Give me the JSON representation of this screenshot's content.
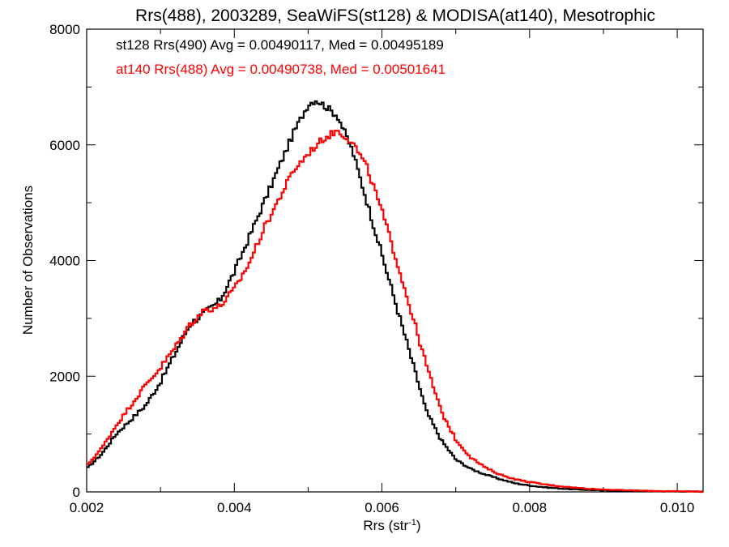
{
  "chart_data": {
    "type": "line",
    "title": "Rrs(488), 2003289, SeaWiFS(st128) & MODISA(at140), Mesotrophic",
    "xlabel": "Rrs (str",
    "xlabel_sup": "-1",
    "xlabel_close": ")",
    "ylabel": "Number of Observations",
    "xlim": [
      0.002,
      0.01035
    ],
    "ylim": [
      0,
      8000
    ],
    "x_ticks": [
      0.002,
      0.004,
      0.006,
      0.008,
      0.01
    ],
    "x_tick_labels": [
      "0.002",
      "0.004",
      "0.006",
      "0.008",
      "0.010"
    ],
    "y_ticks": [
      0,
      2000,
      4000,
      6000,
      8000
    ],
    "y_tick_labels": [
      "0",
      "2000",
      "4000",
      "6000",
      "8000"
    ],
    "grid": false,
    "legend_placement": "top-left",
    "series": [
      {
        "name": "st128 Rrs(490) Avg = 0.00490117, Med = 0.00495189",
        "color": "#000000",
        "x": [
          0.002,
          0.0022,
          0.0024,
          0.0026,
          0.0028,
          0.003,
          0.0032,
          0.0034,
          0.0036,
          0.0038,
          0.004,
          0.0042,
          0.0044,
          0.0046,
          0.0048,
          0.005,
          0.0051,
          0.0052,
          0.0053,
          0.0054,
          0.0056,
          0.0058,
          0.006,
          0.0062,
          0.0064,
          0.0066,
          0.0068,
          0.007,
          0.0072,
          0.0074,
          0.0076,
          0.0078,
          0.008,
          0.0082,
          0.0084,
          0.0086,
          0.0088,
          0.009,
          0.0092,
          0.0094,
          0.0096,
          0.0098,
          0.01,
          0.0102,
          0.01035
        ],
        "y": [
          400,
          650,
          1000,
          1250,
          1500,
          1900,
          2400,
          2900,
          3100,
          3300,
          3800,
          4400,
          5000,
          5600,
          6200,
          6700,
          6780,
          6700,
          6600,
          6500,
          5900,
          5000,
          4100,
          3200,
          2300,
          1400,
          900,
          560,
          400,
          300,
          220,
          150,
          110,
          80,
          60,
          45,
          35,
          25,
          20,
          15,
          12,
          10,
          8,
          6,
          5
        ]
      },
      {
        "name": "at140 Rrs(488) Avg = 0.00490738, Med = 0.00501641",
        "color": "#ff0000",
        "x": [
          0.002,
          0.0022,
          0.0024,
          0.0026,
          0.0028,
          0.003,
          0.0032,
          0.0034,
          0.0036,
          0.0038,
          0.004,
          0.0042,
          0.0044,
          0.0046,
          0.0048,
          0.005,
          0.0052,
          0.0054,
          0.0056,
          0.0058,
          0.006,
          0.0062,
          0.0064,
          0.0066,
          0.0068,
          0.007,
          0.0072,
          0.0074,
          0.0076,
          0.0078,
          0.008,
          0.0082,
          0.0084,
          0.0086,
          0.0088,
          0.009,
          0.0092,
          0.0094,
          0.0096,
          0.0098,
          0.01,
          0.0102,
          0.01035
        ],
        "y": [
          450,
          750,
          1150,
          1500,
          1850,
          2150,
          2500,
          2900,
          3150,
          3200,
          3500,
          3950,
          4550,
          5050,
          5550,
          5850,
          6100,
          6250,
          6050,
          5600,
          4850,
          4000,
          3100,
          2200,
          1400,
          900,
          600,
          420,
          300,
          220,
          170,
          130,
          100,
          75,
          55,
          42,
          32,
          24,
          18,
          13,
          10,
          8,
          6
        ]
      }
    ]
  }
}
